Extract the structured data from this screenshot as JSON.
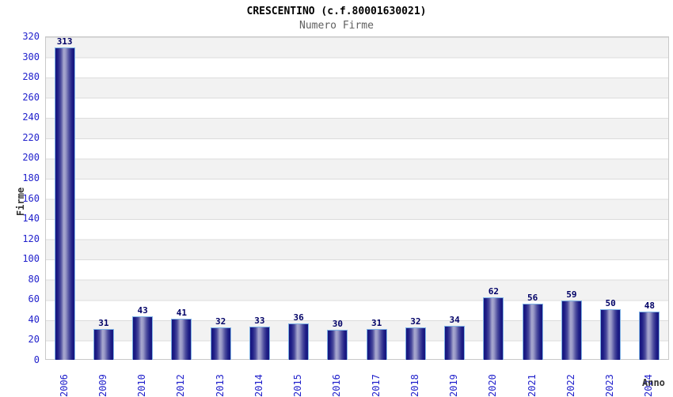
{
  "title": "CRESCENTINO (c.f.80001630021)",
  "subtitle": "Numero Firme",
  "chart_data": {
    "type": "bar",
    "title": "CRESCENTINO (c.f.80001630021)",
    "subtitle": "Numero Firme",
    "xlabel": "Anno",
    "ylabel": "Firme",
    "categories": [
      "2006",
      "2009",
      "2010",
      "2012",
      "2013",
      "2014",
      "2015",
      "2016",
      "2017",
      "2018",
      "2019",
      "2020",
      "2021",
      "2022",
      "2023",
      "2024"
    ],
    "values": [
      313,
      31,
      43,
      41,
      32,
      33,
      36,
      30,
      31,
      32,
      34,
      62,
      56,
      59,
      50,
      48
    ],
    "ylim": [
      0,
      320
    ],
    "ytick_step": 20,
    "grid": "horizontal alternating bands",
    "legend_position": "none",
    "colors": {
      "bar_dark": "#16167e",
      "bar_light": "#a9a9cf",
      "bar_border": "#7fb2e5",
      "tick_label_blue": "#2222cc",
      "value_label_navy": "#000066",
      "band_gray": "#f2f2f2",
      "gridline": "#dcdcdc",
      "title_black": "#000000",
      "subtitle_gray": "#606060",
      "axis_title_gray": "#333333"
    }
  }
}
